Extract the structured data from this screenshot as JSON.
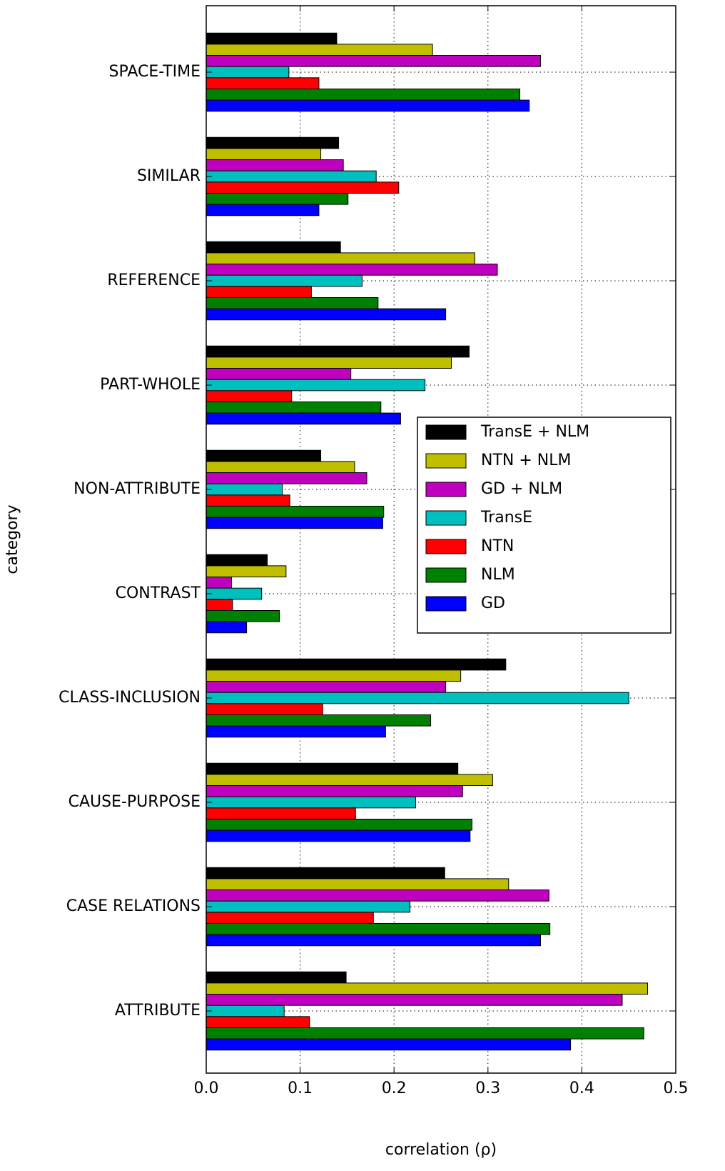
{
  "chart_data": {
    "type": "barh",
    "xlabel": "correlation (ρ)",
    "ylabel": "category",
    "categories": [
      "SPACE-TIME",
      "SIMILAR",
      "REFERENCE",
      "PART-WHOLE",
      "NON-ATTRIBUTE",
      "CONTRAST",
      "CLASS-INCLUSION",
      "CAUSE-PURPOSE",
      "CASE RELATIONS",
      "ATTRIBUTE"
    ],
    "series": [
      {
        "name": "TransE + NLM",
        "color": "#000000",
        "values": [
          0.139,
          0.141,
          0.143,
          0.28,
          0.122,
          0.065,
          0.319,
          0.268,
          0.254,
          0.149
        ]
      },
      {
        "name": "NTN + NLM",
        "color": "#bfbf00",
        "values": [
          0.241,
          0.122,
          0.286,
          0.261,
          0.158,
          0.085,
          0.271,
          0.305,
          0.322,
          0.47
        ]
      },
      {
        "name": "GD + NLM",
        "color": "#bf00bf",
        "values": [
          0.356,
          0.146,
          0.31,
          0.154,
          0.171,
          0.027,
          0.255,
          0.273,
          0.365,
          0.443
        ]
      },
      {
        "name": "TransE",
        "color": "#00bfbf",
        "values": [
          0.088,
          0.181,
          0.166,
          0.233,
          0.081,
          0.059,
          0.45,
          0.223,
          0.217,
          0.083
        ]
      },
      {
        "name": "NTN",
        "color": "#ff0000",
        "values": [
          0.12,
          0.205,
          0.112,
          0.091,
          0.089,
          0.028,
          0.124,
          0.159,
          0.178,
          0.11
        ]
      },
      {
        "name": "NLM",
        "color": "#008000",
        "values": [
          0.334,
          0.151,
          0.183,
          0.186,
          0.189,
          0.078,
          0.239,
          0.283,
          0.366,
          0.466
        ]
      },
      {
        "name": "GD",
        "color": "#0000ff",
        "values": [
          0.344,
          0.12,
          0.255,
          0.207,
          0.188,
          0.043,
          0.191,
          0.281,
          0.356,
          0.388
        ]
      }
    ],
    "xlim": [
      0,
      0.5
    ],
    "xticks": [
      {
        "value": 0,
        "label": "0.0"
      },
      0.1,
      0.2,
      0.3,
      0.4,
      0.5
    ],
    "grid": true,
    "legend": "center right"
  }
}
